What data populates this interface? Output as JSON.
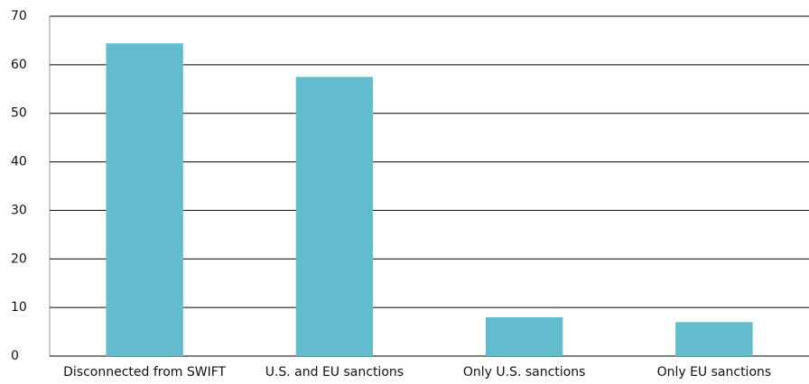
{
  "chart_data": {
    "type": "bar",
    "categories": [
      "Disconnected from SWIFT",
      "U.S. and EU sanctions",
      "Only U.S. sanctions",
      "Only EU sanctions"
    ],
    "values": [
      64.4,
      57.5,
      8.0,
      7.0
    ],
    "color": "#62bccd",
    "ylim": [
      0,
      70
    ],
    "yticks": [
      0,
      10,
      20,
      30,
      40,
      50,
      60,
      70
    ],
    "grid": true
  }
}
